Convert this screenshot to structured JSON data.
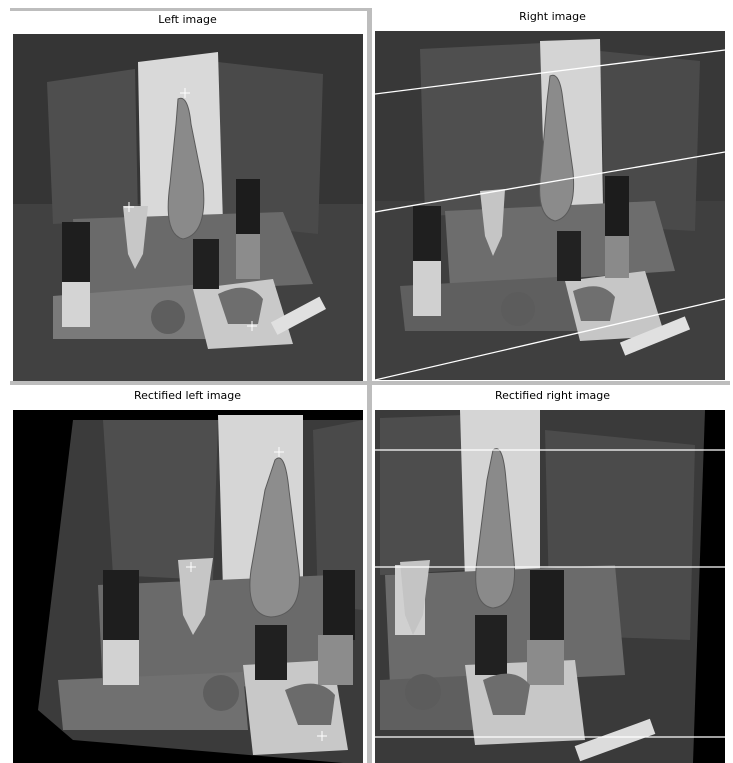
{
  "panels": {
    "top_left": {
      "title": "Left image"
    },
    "top_right": {
      "title": "Right image"
    },
    "bottom_left": {
      "title": "Rectified left image"
    },
    "bottom_right": {
      "title": "Rectified right image"
    }
  },
  "colors": {
    "background": "#ffffff",
    "separator": "#bdbdbd",
    "epipolar_line": "#ffffff",
    "marker": "#ffffff"
  },
  "icons": {
    "point_marker": "plus-marker-icon"
  }
}
